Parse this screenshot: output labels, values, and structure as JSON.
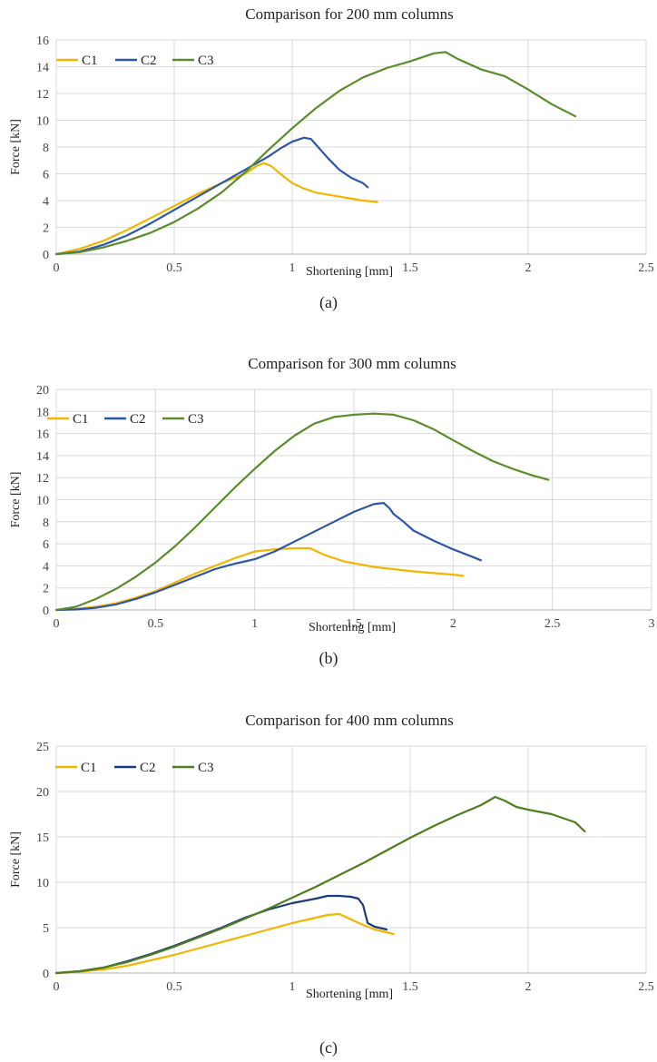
{
  "chart_data": [
    {
      "type": "line",
      "title": "Comparison for 200 mm columns",
      "xlabel": "Shortening  [mm]",
      "ylabel": "Force [kN]",
      "caption": "(a)",
      "xlim": [
        0,
        2.5
      ],
      "ylim": [
        0,
        16
      ],
      "xticks": [
        "0",
        "0.5",
        "1",
        "1.5",
        "2",
        "2.5"
      ],
      "yticks": [
        "0",
        "2",
        "4",
        "6",
        "8",
        "10",
        "12",
        "14",
        "16"
      ],
      "grid": true,
      "legend_position": "top-left",
      "series": [
        {
          "name": "C1",
          "color": "#F2B500",
          "x": [
            0,
            0.1,
            0.2,
            0.3,
            0.4,
            0.5,
            0.6,
            0.7,
            0.8,
            0.85,
            0.88,
            0.91,
            0.95,
            1.0,
            1.05,
            1.1,
            1.2,
            1.3,
            1.36
          ],
          "y": [
            0,
            0.4,
            1.0,
            1.8,
            2.7,
            3.6,
            4.5,
            5.3,
            6.0,
            6.6,
            6.8,
            6.6,
            6.0,
            5.3,
            4.9,
            4.6,
            4.3,
            4.0,
            3.9
          ]
        },
        {
          "name": "C2",
          "color": "#2E56A8",
          "x": [
            0,
            0.1,
            0.2,
            0.3,
            0.4,
            0.5,
            0.6,
            0.7,
            0.8,
            0.9,
            0.95,
            1.0,
            1.05,
            1.08,
            1.1,
            1.15,
            1.2,
            1.25,
            1.3,
            1.32
          ],
          "y": [
            0,
            0.2,
            0.7,
            1.4,
            2.3,
            3.3,
            4.3,
            5.3,
            6.3,
            7.3,
            7.9,
            8.4,
            8.7,
            8.6,
            8.2,
            7.2,
            6.3,
            5.7,
            5.3,
            5.0
          ]
        },
        {
          "name": "C3",
          "color": "#5B8C2A",
          "x": [
            0,
            0.1,
            0.2,
            0.3,
            0.4,
            0.5,
            0.6,
            0.7,
            0.8,
            0.9,
            1.0,
            1.1,
            1.2,
            1.3,
            1.4,
            1.5,
            1.6,
            1.65,
            1.7,
            1.8,
            1.9,
            2.0,
            2.1,
            2.2
          ],
          "y": [
            0,
            0.15,
            0.5,
            1.0,
            1.6,
            2.4,
            3.4,
            4.6,
            6.1,
            7.8,
            9.4,
            10.9,
            12.2,
            13.2,
            13.9,
            14.4,
            15.0,
            15.1,
            14.6,
            13.8,
            13.3,
            12.3,
            11.2,
            10.3
          ]
        }
      ]
    },
    {
      "type": "line",
      "title": "Comparison for 300 mm columns",
      "xlabel": "Shortening  [mm]",
      "ylabel": "Force [kN]",
      "caption": "(b)",
      "xlim": [
        0,
        3
      ],
      "ylim": [
        0,
        20
      ],
      "xticks": [
        "0",
        "0.5",
        "1",
        "1.5",
        "2",
        "2.5",
        "3"
      ],
      "yticks": [
        "0",
        "2",
        "4",
        "6",
        "8",
        "10",
        "12",
        "14",
        "16",
        "18",
        "20"
      ],
      "grid": true,
      "legend_position": "top-left",
      "series": [
        {
          "name": "C1",
          "color": "#F2B500",
          "x": [
            0,
            0.1,
            0.2,
            0.3,
            0.4,
            0.5,
            0.6,
            0.7,
            0.8,
            0.9,
            1.0,
            1.1,
            1.2,
            1.28,
            1.35,
            1.45,
            1.6,
            1.8,
            2.0,
            2.05
          ],
          "y": [
            0,
            0.1,
            0.3,
            0.6,
            1.1,
            1.7,
            2.5,
            3.3,
            4.0,
            4.7,
            5.3,
            5.5,
            5.6,
            5.6,
            5.0,
            4.4,
            3.9,
            3.5,
            3.2,
            3.1
          ]
        },
        {
          "name": "C2",
          "color": "#2E56A8",
          "x": [
            0,
            0.1,
            0.2,
            0.3,
            0.4,
            0.5,
            0.6,
            0.7,
            0.8,
            0.9,
            1.0,
            1.1,
            1.2,
            1.3,
            1.4,
            1.5,
            1.6,
            1.65,
            1.68,
            1.7,
            1.75,
            1.8,
            1.9,
            2.0,
            2.1,
            2.14
          ],
          "y": [
            0,
            0.05,
            0.2,
            0.5,
            1.0,
            1.6,
            2.3,
            3.0,
            3.7,
            4.2,
            4.6,
            5.3,
            6.2,
            7.1,
            8.0,
            8.9,
            9.6,
            9.7,
            9.2,
            8.7,
            8.0,
            7.2,
            6.3,
            5.5,
            4.8,
            4.5
          ]
        },
        {
          "name": "C3",
          "color": "#5B8C2A",
          "x": [
            0,
            0.1,
            0.2,
            0.3,
            0.4,
            0.5,
            0.6,
            0.7,
            0.8,
            0.9,
            1.0,
            1.1,
            1.2,
            1.3,
            1.4,
            1.5,
            1.6,
            1.7,
            1.8,
            1.9,
            2.0,
            2.1,
            2.2,
            2.3,
            2.4,
            2.48
          ],
          "y": [
            0,
            0.3,
            1.0,
            1.9,
            3.0,
            4.3,
            5.8,
            7.5,
            9.3,
            11.1,
            12.8,
            14.4,
            15.8,
            16.9,
            17.5,
            17.7,
            17.8,
            17.7,
            17.2,
            16.4,
            15.4,
            14.4,
            13.5,
            12.8,
            12.2,
            11.8
          ]
        }
      ]
    },
    {
      "type": "line",
      "title": "Comparison for 400 mm columns",
      "xlabel": "Shortening  [mm]",
      "ylabel": "Force [kN]",
      "caption": "(c)",
      "xlim": [
        0,
        2.5
      ],
      "ylim": [
        0,
        25
      ],
      "xticks": [
        "0",
        "0.5",
        "1",
        "1.5",
        "2",
        "2.5"
      ],
      "yticks": [
        "0",
        "5",
        "10",
        "15",
        "20",
        "25"
      ],
      "grid": true,
      "legend_position": "top-left",
      "series": [
        {
          "name": "C1",
          "color": "#F2B500",
          "x": [
            0,
            0.1,
            0.2,
            0.3,
            0.4,
            0.5,
            0.6,
            0.7,
            0.8,
            0.9,
            1.0,
            1.1,
            1.15,
            1.2,
            1.25,
            1.3,
            1.35,
            1.43
          ],
          "y": [
            0,
            0.15,
            0.4,
            0.8,
            1.4,
            2.0,
            2.7,
            3.4,
            4.1,
            4.8,
            5.5,
            6.1,
            6.4,
            6.5,
            5.9,
            5.3,
            4.8,
            4.3
          ]
        },
        {
          "name": "C2",
          "color": "#1C3A7A",
          "x": [
            0,
            0.1,
            0.2,
            0.3,
            0.4,
            0.5,
            0.6,
            0.7,
            0.8,
            0.9,
            1.0,
            1.1,
            1.15,
            1.2,
            1.25,
            1.28,
            1.3,
            1.32,
            1.35,
            1.4
          ],
          "y": [
            0,
            0.2,
            0.6,
            1.3,
            2.1,
            3.0,
            4.0,
            5.0,
            6.1,
            7.0,
            7.7,
            8.2,
            8.5,
            8.5,
            8.4,
            8.2,
            7.5,
            5.5,
            5.1,
            4.8
          ]
        },
        {
          "name": "C3",
          "color": "#4E7F1F",
          "x": [
            0,
            0.1,
            0.2,
            0.3,
            0.4,
            0.5,
            0.6,
            0.7,
            0.8,
            0.9,
            1.0,
            1.1,
            1.2,
            1.3,
            1.4,
            1.5,
            1.6,
            1.7,
            1.8,
            1.86,
            1.9,
            1.95,
            2.0,
            2.1,
            2.2,
            2.24
          ],
          "y": [
            0,
            0.2,
            0.6,
            1.2,
            2.0,
            2.9,
            3.9,
            4.9,
            6.0,
            7.1,
            8.3,
            9.5,
            10.8,
            12.1,
            13.5,
            14.9,
            16.2,
            17.4,
            18.5,
            19.4,
            19.0,
            18.3,
            18.0,
            17.5,
            16.6,
            15.6
          ]
        }
      ]
    }
  ]
}
